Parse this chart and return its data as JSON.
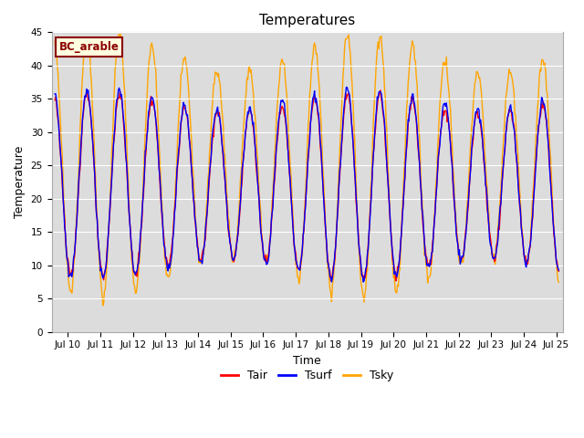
{
  "title": "Temperatures",
  "xlabel": "Time",
  "ylabel": "Temperature",
  "annotation": "BC_arable",
  "ylim": [
    0,
    45
  ],
  "xlim": [
    9.5,
    25.2
  ],
  "xtick_start": 10,
  "xtick_end": 25,
  "legend": [
    "Tair",
    "Tsurf",
    "Tsky"
  ],
  "colors": [
    "red",
    "blue",
    "orange"
  ],
  "plot_bg_color": "#dcdcdc",
  "fig_bg_color": "#ffffff",
  "title_fontsize": 11,
  "tick_fontsize": 7.5,
  "label_fontsize": 9
}
